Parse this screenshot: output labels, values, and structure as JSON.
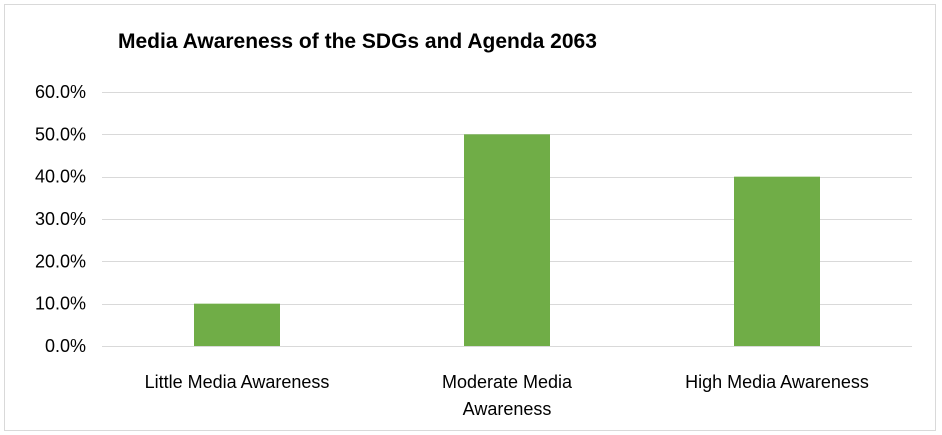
{
  "chart_data": {
    "type": "bar",
    "title": "Media Awareness of the SDGs and Agenda 2063",
    "categories": [
      "Little Media Awareness",
      "Moderate Media Awareness",
      "High Media Awareness"
    ],
    "category_lines": [
      [
        "Little Media Awareness"
      ],
      [
        "Moderate Media",
        "Awareness"
      ],
      [
        "High Media Awareness"
      ]
    ],
    "values": [
      10.0,
      50.0,
      40.0
    ],
    "ylim": [
      0,
      60
    ],
    "yticks": [
      0,
      10,
      20,
      30,
      40,
      50,
      60
    ],
    "ytick_labels": [
      "0.0%",
      "10.0%",
      "20.0%",
      "30.0%",
      "40.0%",
      "50.0%",
      "60.0%"
    ],
    "value_format": "percent",
    "xlabel": "",
    "ylabel": "",
    "grid": true,
    "legend": "none",
    "bar_color": "#70ad47",
    "grid_color": "#d9d9d9"
  }
}
